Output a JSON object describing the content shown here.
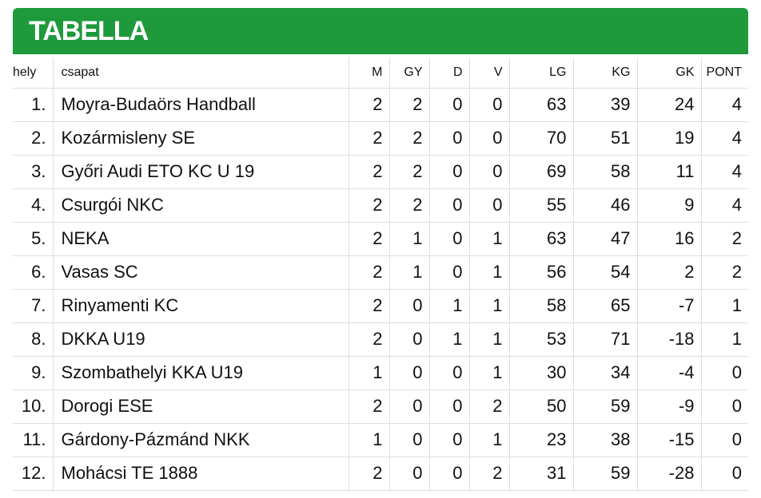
{
  "header": {
    "title": "TABELLA"
  },
  "table": {
    "columns": [
      "hely",
      "csapat",
      "M",
      "GY",
      "D",
      "V",
      "LG",
      "KG",
      "GK",
      "PONT"
    ],
    "rows": [
      [
        "1.",
        "Moyra-Budaörs Handball",
        2,
        2,
        0,
        0,
        63,
        39,
        24,
        4
      ],
      [
        "2.",
        "Kozármisleny SE",
        2,
        2,
        0,
        0,
        70,
        51,
        19,
        4
      ],
      [
        "3.",
        "Győri Audi ETO KC U 19",
        2,
        2,
        0,
        0,
        69,
        58,
        11,
        4
      ],
      [
        "4.",
        "Csurgói NKC",
        2,
        2,
        0,
        0,
        55,
        46,
        9,
        4
      ],
      [
        "5.",
        "NEKA",
        2,
        1,
        0,
        1,
        63,
        47,
        16,
        2
      ],
      [
        "6.",
        "Vasas SC",
        2,
        1,
        0,
        1,
        56,
        54,
        2,
        2
      ],
      [
        "7.",
        "Rinyamenti KC",
        2,
        0,
        1,
        1,
        58,
        65,
        -7,
        1
      ],
      [
        "8.",
        "DKKA U19",
        2,
        0,
        1,
        1,
        53,
        71,
        -18,
        1
      ],
      [
        "9.",
        "Szombathelyi KKA U19",
        1,
        0,
        0,
        1,
        30,
        34,
        -4,
        0
      ],
      [
        "10.",
        "Dorogi ESE",
        2,
        0,
        0,
        2,
        50,
        59,
        -9,
        0
      ],
      [
        "11.",
        "Gárdony-Pázmánd NKK",
        1,
        0,
        0,
        1,
        23,
        38,
        -15,
        0
      ],
      [
        "12.",
        "Mohácsi TE 1888",
        2,
        0,
        0,
        2,
        31,
        59,
        -28,
        0
      ]
    ]
  }
}
